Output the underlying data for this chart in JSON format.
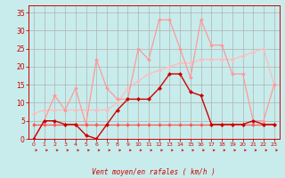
{
  "xlabel": "Vent moyen/en rafales ( km/h )",
  "bg_color": "#c8ecec",
  "grid_color": "#b0b0b0",
  "x": [
    0,
    1,
    2,
    3,
    4,
    5,
    6,
    7,
    8,
    9,
    10,
    11,
    12,
    13,
    14,
    15,
    16,
    17,
    18,
    19,
    20,
    21,
    22,
    23
  ],
  "series": [
    {
      "color": "#cc0000",
      "linewidth": 1.0,
      "markersize": 2.2,
      "values": [
        0,
        5,
        5,
        4,
        4,
        1,
        0,
        4,
        8,
        11,
        11,
        11,
        14,
        18,
        18,
        13,
        12,
        4,
        4,
        4,
        4,
        5,
        4,
        4
      ]
    },
    {
      "color": "#ff5555",
      "linewidth": 0.9,
      "markersize": 2.0,
      "values": [
        4,
        4,
        4,
        4,
        4,
        4,
        4,
        4,
        4,
        4,
        4,
        4,
        4,
        4,
        4,
        4,
        4,
        4,
        4,
        4,
        4,
        4,
        4,
        4
      ]
    },
    {
      "color": "#ff9999",
      "linewidth": 0.9,
      "markersize": 2.0,
      "values": [
        0,
        5,
        12,
        8,
        14,
        4,
        22,
        14,
        11,
        11,
        25,
        22,
        33,
        33,
        25,
        17,
        33,
        26,
        26,
        18,
        18,
        5,
        5,
        15
      ]
    },
    {
      "color": "#ffbbbb",
      "linewidth": 0.9,
      "markersize": 2.0,
      "values": [
        7,
        8,
        8,
        8,
        8,
        8,
        8,
        8,
        10,
        14,
        16,
        18,
        19,
        20,
        21,
        21,
        22,
        22,
        22,
        22,
        23,
        24,
        25,
        15
      ]
    }
  ],
  "xlim": [
    -0.5,
    23.5
  ],
  "ylim": [
    0,
    37
  ],
  "yticks": [
    0,
    5,
    10,
    15,
    20,
    25,
    30,
    35
  ],
  "xticks": [
    0,
    1,
    2,
    3,
    4,
    5,
    6,
    7,
    8,
    9,
    10,
    11,
    12,
    13,
    14,
    15,
    16,
    17,
    18,
    19,
    20,
    21,
    22,
    23
  ]
}
